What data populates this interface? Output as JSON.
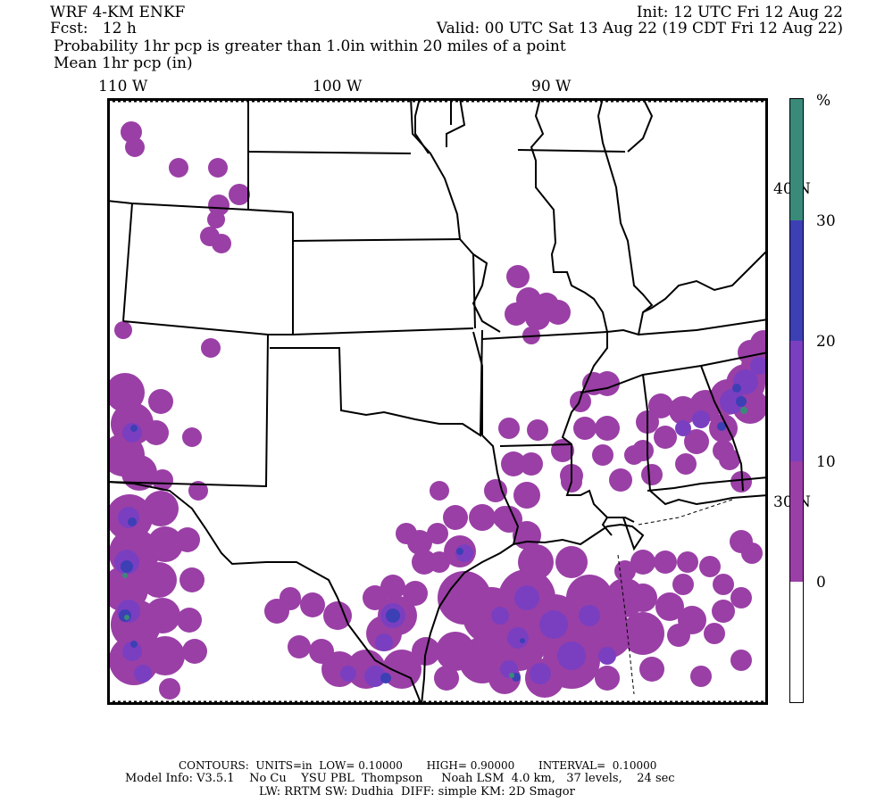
{
  "header": {
    "model_name": "WRF 4-KM ENKF",
    "forecast": "Fcst:   12 h",
    "init": "Init: 12 UTC Fri 12 Aug 22",
    "valid": "Valid: 00 UTC Sat 13 Aug 22 (19 CDT Fri 12 Aug 22)"
  },
  "title": {
    "line1": "Probability 1hr pcp is greater than 1.0in within 20 miles of a point",
    "line2": "Mean 1hr pcp (in)"
  },
  "longitude_labels": [
    "110 W",
    "100 W",
    "90 W"
  ],
  "latitude_labels": [
    "40 N",
    "30 N"
  ],
  "colorbar": {
    "unit_label": "%",
    "tick_labels": [
      "30",
      "20",
      "10",
      "0"
    ],
    "bins": [
      {
        "range": "30+",
        "color": "#3a8a7a"
      },
      {
        "range": "20-30",
        "color": "#3d3fb5"
      },
      {
        "range": "10-20",
        "color": "#7a3fc0"
      },
      {
        "range": "0-10",
        "color": "#9a3fa6"
      },
      {
        "range": "<0",
        "color": "#ffffff"
      }
    ]
  },
  "footer": {
    "contours": "CONTOURS:  UNITS=in  LOW= 0.10000       HIGH= 0.90000       INTERVAL=  0.10000",
    "model_info": "Model Info: V3.5.1    No Cu    YSU PBL  Thompson     Noah LSM  4.0 km,   37 levels,    24 sec",
    "physics": "LW: RRTM SW: Dudhia  DIFF: simple KM: 2D Smagor"
  },
  "colors": {
    "prob_low": "#9a3fa6",
    "prob_mid": "#7a3fc0",
    "prob_high": "#3d3fb5",
    "prob_max": "#3a8a7a"
  }
}
